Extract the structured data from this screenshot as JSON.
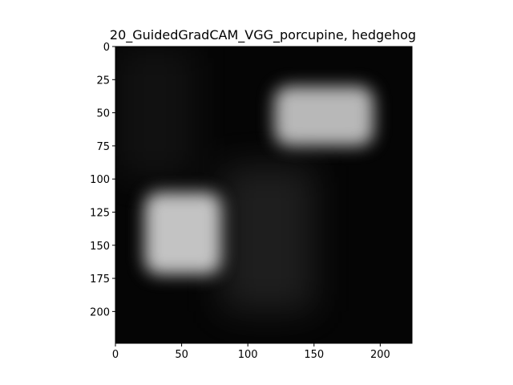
{
  "chart_data": {
    "type": "heatmap",
    "title": "20_GuidedGradCAM_VGG_porcupine, hedgehog",
    "xlabel": "",
    "ylabel": "",
    "xlim": [
      0,
      224
    ],
    "ylim": [
      224,
      0
    ],
    "x_ticks": [
      0,
      50,
      100,
      150,
      200
    ],
    "y_ticks": [
      0,
      25,
      50,
      75,
      100,
      125,
      150,
      175,
      200
    ],
    "x_tick_labels": [
      "0",
      "50",
      "100",
      "150",
      "200"
    ],
    "y_tick_labels": [
      "0",
      "25",
      "50",
      "75",
      "100",
      "125",
      "150",
      "175",
      "200"
    ],
    "grid": false,
    "background_color": "#050505",
    "highlight_color": "#d8d8d8",
    "activation_regions": [
      {
        "x": [
          120,
          195
        ],
        "y": [
          30,
          75
        ],
        "intensity": 0.85
      },
      {
        "x": [
          22,
          80
        ],
        "y": [
          110,
          172
        ],
        "intensity": 0.9
      }
    ],
    "diffuse_regions": [
      {
        "x": [
          80,
          150
        ],
        "y": [
          90,
          200
        ],
        "intensity": 0.12
      },
      {
        "x": [
          0,
          60
        ],
        "y": [
          0,
          100
        ],
        "intensity": 0.06
      }
    ]
  }
}
